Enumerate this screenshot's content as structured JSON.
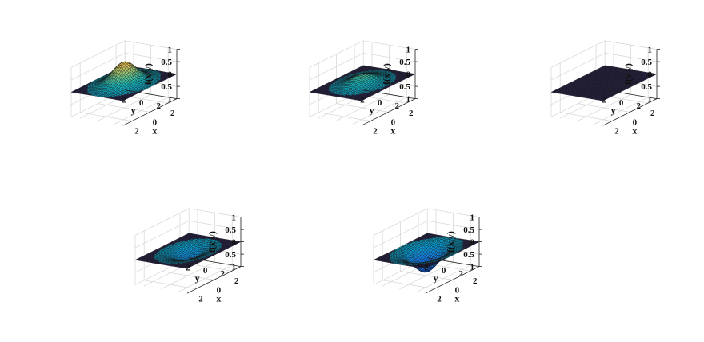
{
  "chart_data": [
    {
      "type": "surface3d",
      "title": "",
      "xlabel": "x",
      "ylabel": "y",
      "zlabel": "f(x y)",
      "xlim": [
        -3,
        3
      ],
      "ylim": [
        -3,
        3
      ],
      "zlim": [
        -1,
        1
      ],
      "x_ticks": [
        "2",
        "0",
        "2"
      ],
      "y_ticks": [
        "2",
        "0",
        "2"
      ],
      "z_ticks": [
        "1",
        "0.5",
        "0",
        "0.5",
        "1"
      ],
      "peak_amplitude": 0.85,
      "grid": true,
      "colormap": "parula"
    },
    {
      "type": "surface3d",
      "title": "",
      "xlabel": "x",
      "ylabel": "y",
      "zlabel": "f(x y)",
      "xlim": [
        -3,
        3
      ],
      "ylim": [
        -3,
        3
      ],
      "zlim": [
        -1,
        1
      ],
      "x_ticks": [
        "2",
        "0",
        "2"
      ],
      "y_ticks": [
        "2",
        "0",
        "2"
      ],
      "z_ticks": [
        "1",
        "0.5",
        "0",
        "0.5",
        "1"
      ],
      "peak_amplitude": 0.35,
      "grid": true,
      "colormap": "parula"
    },
    {
      "type": "surface3d",
      "title": "",
      "xlabel": "x",
      "ylabel": "y",
      "zlabel": "f(x y)",
      "xlim": [
        -3,
        3
      ],
      "ylim": [
        -3,
        3
      ],
      "zlim": [
        -1,
        1
      ],
      "x_ticks": [
        "2",
        "0",
        "2"
      ],
      "y_ticks": [
        "2",
        "0",
        "2"
      ],
      "z_ticks": [
        "1",
        "0.5",
        "0",
        "0.5",
        "1"
      ],
      "peak_amplitude": 0.0,
      "grid": true,
      "colormap": "parula"
    },
    {
      "type": "surface3d",
      "title": "",
      "xlabel": "x",
      "ylabel": "y",
      "zlabel": "f(x y)",
      "xlim": [
        -3,
        3
      ],
      "ylim": [
        -3,
        3
      ],
      "zlim": [
        -1,
        1
      ],
      "x_ticks": [
        "2",
        "0",
        "2"
      ],
      "y_ticks": [
        "2",
        "0",
        "2"
      ],
      "z_ticks": [
        "1",
        "0.5",
        "0",
        "0.5",
        "1"
      ],
      "peak_amplitude": -0.35,
      "grid": true,
      "colormap": "parula"
    },
    {
      "type": "surface3d",
      "title": "",
      "xlabel": "x",
      "ylabel": "y",
      "zlabel": "f(x y)",
      "xlim": [
        -3,
        3
      ],
      "ylim": [
        -3,
        3
      ],
      "zlim": [
        -1,
        1
      ],
      "x_ticks": [
        "2",
        "0",
        "2"
      ],
      "y_ticks": [
        "2",
        "0",
        "2"
      ],
      "z_ticks": [
        "1",
        "0.5",
        "0",
        "0.5",
        "1"
      ],
      "peak_amplitude": -0.85,
      "grid": true,
      "colormap": "parula"
    }
  ]
}
